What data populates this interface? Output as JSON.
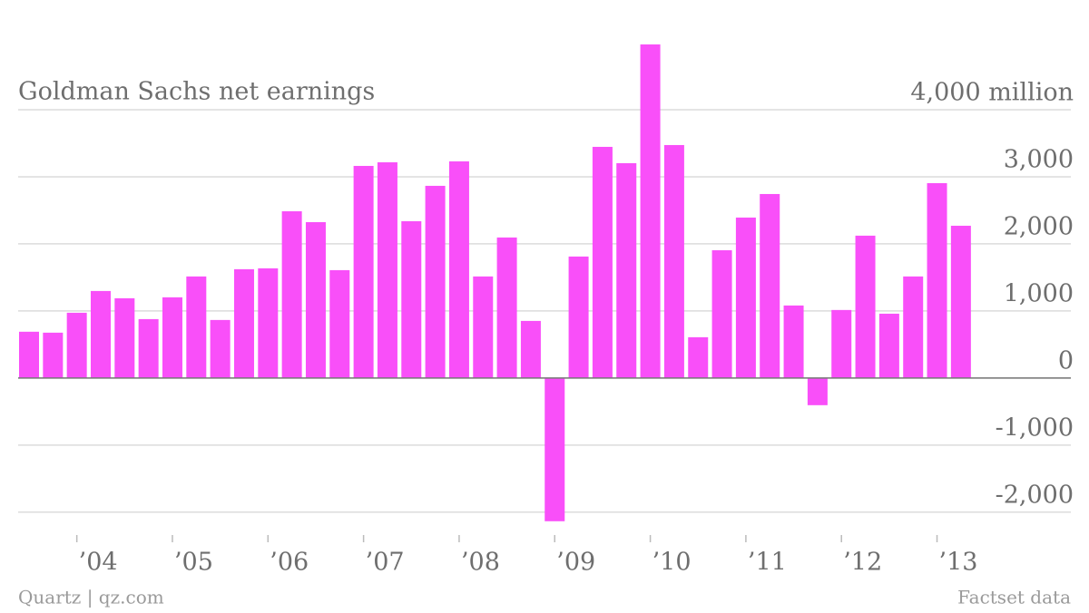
{
  "chart_data": {
    "type": "bar",
    "title": "Goldman Sachs net earnings",
    "source": "Quartz | qz.com",
    "credit": "Factset data",
    "categories": [
      null,
      null,
      "’04",
      null,
      null,
      null,
      "’05",
      null,
      null,
      null,
      "’06",
      null,
      null,
      null,
      "’07",
      null,
      null,
      null,
      "’08",
      null,
      null,
      null,
      "’09",
      null,
      null,
      null,
      "’10",
      null,
      null,
      null,
      "’11",
      null,
      null,
      null,
      "’12",
      null,
      null,
      null,
      "’13",
      null
    ],
    "values": [
      690,
      676,
      973,
      1297,
      1189,
      878,
      1203,
      1514,
      865,
      1622,
      1635,
      2486,
      2324,
      1608,
      3162,
      3216,
      2338,
      2865,
      3230,
      1514,
      2095,
      851,
      -2135,
      1811,
      3446,
      3203,
      4973,
      3473,
      608,
      1905,
      2392,
      2743,
      1081,
      -405,
      1014,
      2122,
      959,
      1514,
      2905,
      2270
    ],
    "color": "#f94ff9",
    "ylim": [
      -2300,
      5000
    ],
    "yticks": [
      {
        "value": -2000,
        "label": "-2,000"
      },
      {
        "value": -1000,
        "label": "-1,000"
      },
      0,
      {
        "value": 1000,
        "label": "1,000"
      },
      {
        "value": 2000,
        "label": "2,000"
      },
      {
        "value": 3000,
        "label": "3,000"
      },
      {
        "value": 4000,
        "label": "4,000 million"
      }
    ],
    "grid": true
  }
}
